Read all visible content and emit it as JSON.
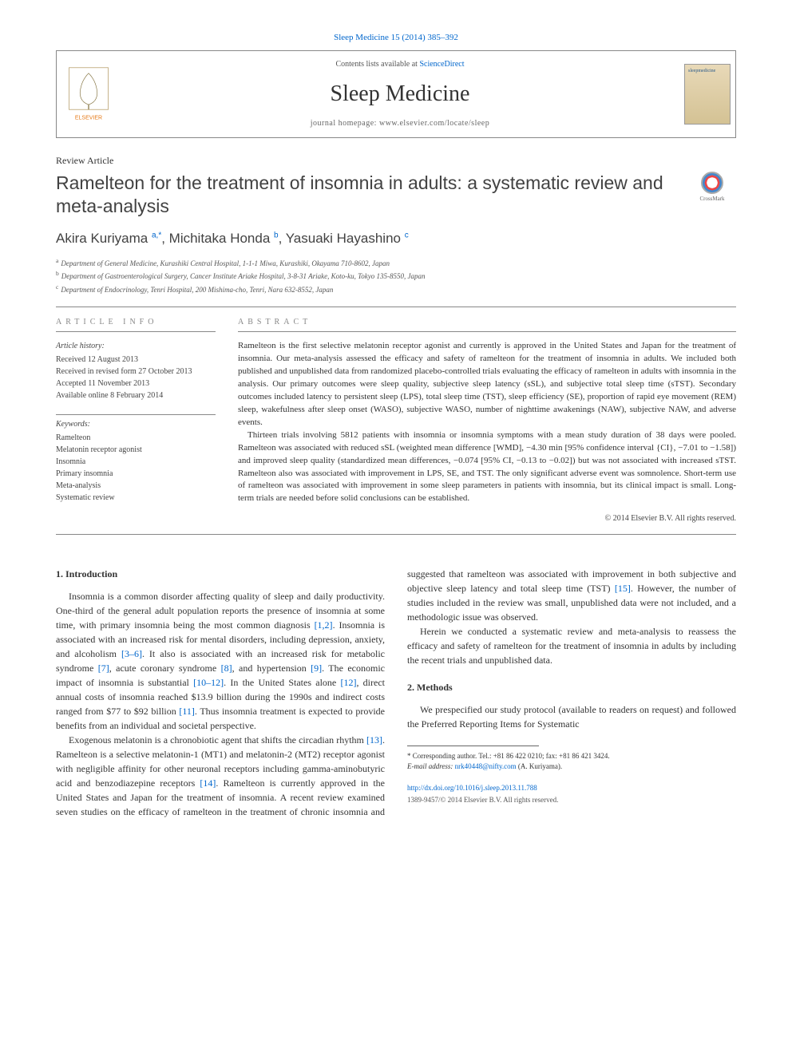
{
  "citation": "Sleep Medicine 15 (2014) 385–392",
  "header": {
    "contents_prefix": "Contents lists available at ",
    "contents_link": "ScienceDirect",
    "journal": "Sleep Medicine",
    "homepage_prefix": "journal homepage: ",
    "homepage": "www.elsevier.com/locate/sleep",
    "publisher": "ELSEVIER"
  },
  "article_type": "Review Article",
  "title": "Ramelteon for the treatment of insomnia in adults: a systematic review and meta-analysis",
  "crossmark": "CrossMark",
  "authors_html": "Akira Kuriyama <sup>a,*</sup>, Michitaka Honda <sup>b</sup>, Yasuaki Hayashino <sup>c</sup>",
  "affiliations": [
    {
      "sup": "a",
      "text": "Department of General Medicine, Kurashiki Central Hospital, 1-1-1 Miwa, Kurashiki, Okayama 710-8602, Japan"
    },
    {
      "sup": "b",
      "text": "Department of Gastroenterological Surgery, Cancer Institute Ariake Hospital, 3-8-31 Ariake, Koto-ku, Tokyo 135-8550, Japan"
    },
    {
      "sup": "c",
      "text": "Department of Endocrinology, Tenri Hospital, 200 Mishima-cho, Tenri, Nara 632-8552, Japan"
    }
  ],
  "info": {
    "heading": "ARTICLE INFO",
    "history_label": "Article history:",
    "history": [
      "Received 12 August 2013",
      "Received in revised form 27 October 2013",
      "Accepted 11 November 2013",
      "Available online 8 February 2014"
    ],
    "keywords_label": "Keywords:",
    "keywords": [
      "Ramelteon",
      "Melatonin receptor agonist",
      "Insomnia",
      "Primary insomnia",
      "Meta-analysis",
      "Systematic review"
    ]
  },
  "abstract": {
    "heading": "ABSTRACT",
    "p1": "Ramelteon is the first selective melatonin receptor agonist and currently is approved in the United States and Japan for the treatment of insomnia. Our meta-analysis assessed the efficacy and safety of ramelteon for the treatment of insomnia in adults. We included both published and unpublished data from randomized placebo-controlled trials evaluating the efficacy of ramelteon in adults with insomnia in the analysis. Our primary outcomes were sleep quality, subjective sleep latency (sSL), and subjective total sleep time (sTST). Secondary outcomes included latency to persistent sleep (LPS), total sleep time (TST), sleep efficiency (SE), proportion of rapid eye movement (REM) sleep, wakefulness after sleep onset (WASO), subjective WASO, number of nighttime awakenings (NAW), subjective NAW, and adverse events.",
    "p2": "Thirteen trials involving 5812 patients with insomnia or insomnia symptoms with a mean study duration of 38 days were pooled. Ramelteon was associated with reduced sSL (weighted mean difference [WMD], −4.30 min [95% confidence interval {CI}, −7.01 to −1.58]) and improved sleep quality (standardized mean differences, −0.074 [95% CI, −0.13 to −0.02]) but was not associated with increased sTST. Ramelteon also was associated with improvement in LPS, SE, and TST. The only significant adverse event was somnolence. Short-term use of ramelteon was associated with improvement in some sleep parameters in patients with insomnia, but its clinical impact is small. Long-term trials are needed before solid conclusions can be established.",
    "copyright": "© 2014 Elsevier B.V. All rights reserved."
  },
  "body": {
    "intro_heading": "1. Introduction",
    "intro_p1_a": "Insomnia is a common disorder affecting quality of sleep and daily productivity. One-third of the general adult population reports the presence of insomnia at some time, with primary insomnia being the most common diagnosis ",
    "ref_1_2": "[1,2]",
    "intro_p1_b": ". Insomnia is associated with an increased risk for mental disorders, including depression, anxiety, and alcoholism ",
    "ref_3_6": "[3–6]",
    "intro_p1_c": ". It also is associated with an increased risk for metabolic syndrome ",
    "ref_7": "[7]",
    "intro_p1_d": ", acute coronary syndrome ",
    "ref_8": "[8]",
    "intro_p1_e": ", and hypertension ",
    "ref_9": "[9]",
    "intro_p1_f": ". The economic impact of insomnia is substantial ",
    "ref_10_12": "[10–12]",
    "intro_p1_g": ". In the United States alone ",
    "ref_12": "[12]",
    "intro_p1_h": ", direct annual costs of insomnia reached $13.9 billion during the 1990s and indirect costs ranged from $77 to $92 billion ",
    "ref_11": "[11]",
    "intro_p1_i": ". Thus insomnia treatment is expected to provide benefits from an individual and societal perspective.",
    "intro_p2_a": "Exogenous melatonin is a chronobiotic agent that shifts the circadian rhythm ",
    "ref_13": "[13]",
    "intro_p2_b": ". Ramelteon is a selective melatonin-1 ",
    "intro_p2_c": "(MT1) and melatonin-2 (MT2) receptor agonist with negligible affinity for other neuronal receptors including gamma-aminobutyric acid and benzodiazepine receptors ",
    "ref_14": "[14]",
    "intro_p2_d": ". Ramelteon is currently approved in the United States and Japan for the treatment of insomnia. A recent review examined seven studies on the efficacy of ramelteon in the treatment of chronic insomnia and suggested that ramelteon was associated with improvement in both subjective and objective sleep latency and total sleep time (TST) ",
    "ref_15": "[15]",
    "intro_p2_e": ". However, the number of studies included in the review was small, unpublished data were not included, and a methodologic issue was observed.",
    "intro_p3": "Herein we conducted a systematic review and meta-analysis to reassess the efficacy and safety of ramelteon for the treatment of insomnia in adults by including the recent trials and unpublished data.",
    "methods_heading": "2. Methods",
    "methods_p1": "We prespecified our study protocol (available to readers on request) and followed the Preferred Reporting Items for Systematic"
  },
  "footnotes": {
    "corr": "* Corresponding author. Tel.: +81 86 422 0210; fax: +81 86 421 3424.",
    "email_label": "E-mail address: ",
    "email": "nrk40448@nifty.com",
    "email_suffix": " (A. Kuriyama)."
  },
  "footer": {
    "doi": "http://dx.doi.org/10.1016/j.sleep.2013.11.788",
    "issn": "1389-9457/© 2014 Elsevier B.V. All rights reserved."
  },
  "colors": {
    "link": "#0066cc",
    "text": "#333333",
    "rule": "#888888"
  }
}
